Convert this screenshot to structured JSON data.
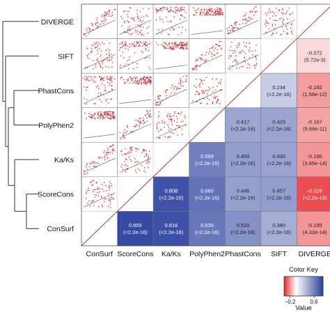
{
  "chart_data": {
    "type": "heatmap",
    "title": "",
    "variables": [
      "ConSurf",
      "ScoreCons",
      "Ka/Ks",
      "PolyPhen2",
      "PhastCons",
      "SIFT",
      "DIVERGE"
    ],
    "row_labels_top_to_bottom": [
      "DIVERGE",
      "SIFT",
      "PhastCons",
      "PolyPhen2",
      "Ka/Ks",
      "ScoreCons",
      "ConSurf"
    ],
    "column_labels": [
      "ConSurf",
      "ScoreCons",
      "Ka/Ks",
      "PolyPhen2",
      "PhastCons",
      "SIFT",
      "DIVERGE"
    ],
    "correlations": [
      {
        "row": "SIFT",
        "col": "DIVERGE",
        "value": -0.072,
        "value_label": "-0.072",
        "p_label": "(5.72e-3)"
      },
      {
        "row": "PhastCons",
        "col": "SIFT",
        "value": 0.234,
        "value_label": "0.234",
        "p_label": "(<2.2e-16)"
      },
      {
        "row": "PhastCons",
        "col": "DIVERGE",
        "value": -0.182,
        "value_label": "-0.182",
        "p_label": "(1.56e-12)"
      },
      {
        "row": "PolyPhen2",
        "col": "PhastCons",
        "value": 0.417,
        "value_label": "0.417",
        "p_label": "(<2.2e-16)"
      },
      {
        "row": "PolyPhen2",
        "col": "SIFT",
        "value": 0.425,
        "value_label": "0.425",
        "p_label": "(<2.2e-16)"
      },
      {
        "row": "PolyPhen2",
        "col": "DIVERGE",
        "value": -0.167,
        "value_label": "-0.167",
        "p_label": "(9.86e-11)"
      },
      {
        "row": "Ka/Ks",
        "col": "PolyPhen2",
        "value": 0.599,
        "value_label": "0.599",
        "p_label": "(<2.2e-16)"
      },
      {
        "row": "Ka/Ks",
        "col": "PhastCons",
        "value": 0.459,
        "value_label": "0.459",
        "p_label": "(<2.2e-16)"
      },
      {
        "row": "Ka/Ks",
        "col": "SIFT",
        "value": 0.43,
        "value_label": "0.430",
        "p_label": "(<2.2e-16)"
      },
      {
        "row": "Ka/Ks",
        "col": "DIVERGE",
        "value": -0.195,
        "value_label": "-0.195",
        "p_label": "(3.85e-14)"
      },
      {
        "row": "ScoreCons",
        "col": "Ka/Ks",
        "value": 0.808,
        "value_label": "0.808",
        "p_label": "(<2.2e-16)"
      },
      {
        "row": "ScoreCons",
        "col": "PolyPhen2",
        "value": 0.66,
        "value_label": "0.660",
        "p_label": "(<2.2e-16)"
      },
      {
        "row": "ScoreCons",
        "col": "PhastCons",
        "value": 0.446,
        "value_label": "0.446",
        "p_label": "(<2.2e-16)"
      },
      {
        "row": "ScoreCons",
        "col": "SIFT",
        "value": 0.457,
        "value_label": "0.457",
        "p_label": "(<2.2e-16)"
      },
      {
        "row": "ScoreCons",
        "col": "DIVERGE",
        "value": -0.328,
        "value_label": "-0.328",
        "p_label": "(<2.2e-16)"
      },
      {
        "row": "ConSurf",
        "col": "ScoreCons",
        "value": 0.855,
        "value_label": "0.855",
        "p_label": "(<2.2e-16)"
      },
      {
        "row": "ConSurf",
        "col": "Ka/Ks",
        "value": 0.816,
        "value_label": "0.816",
        "p_label": "(<2.2e-16)"
      },
      {
        "row": "ConSurf",
        "col": "PolyPhen2",
        "value": 0.635,
        "value_label": "0.635",
        "p_label": "(<2.2e-16)"
      },
      {
        "row": "ConSurf",
        "col": "PhastCons",
        "value": 0.52,
        "value_label": "0.520",
        "p_label": "(<2.2e-16)"
      },
      {
        "row": "ConSurf",
        "col": "SIFT",
        "value": 0.38,
        "value_label": "0.380",
        "p_label": "(<2.2e-16)"
      },
      {
        "row": "ConSurf",
        "col": "DIVERGE",
        "value": -0.195,
        "value_label": "-0.195",
        "p_label": "(4.32e-14)"
      }
    ],
    "upper_triangle": "pairwise scatter plots with fitted lines",
    "color_key": {
      "title": "Color Key",
      "axis_label": "Value",
      "tick_values": [
        -0.2,
        0.6
      ],
      "tick_labels": [
        "−0.2",
        "0.6"
      ],
      "range": [
        -0.4,
        0.9
      ],
      "colors": {
        "negative": "#e8262a",
        "zero": "#ffffff",
        "positive": "#2b3f9e"
      }
    },
    "dendrogram_side": "left",
    "grid": false
  }
}
